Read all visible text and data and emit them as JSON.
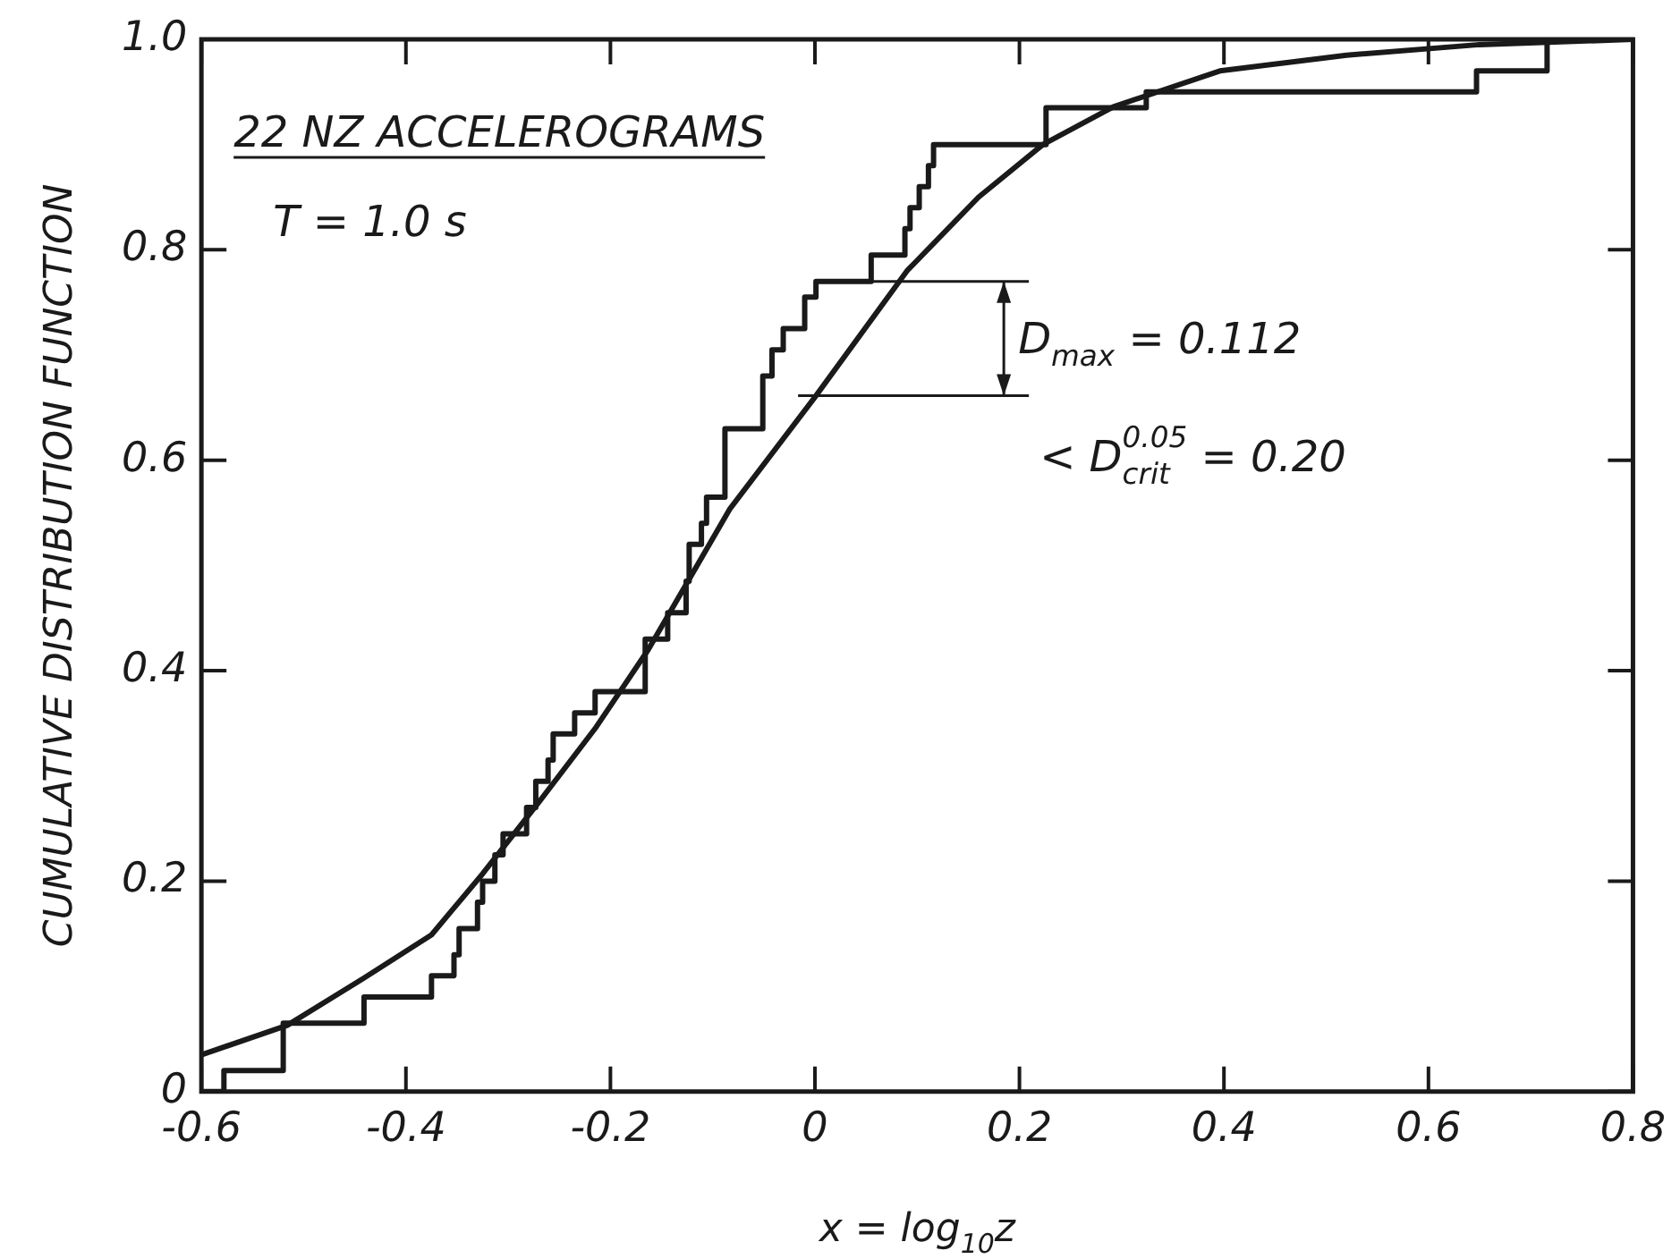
{
  "chart_data": {
    "type": "line",
    "xlabel": "x = log$_{10}$z",
    "ylabel": "CUMULATIVE DISTRIBUTION FUNCTION",
    "xlim": [
      -0.6,
      0.8
    ],
    "xticks": [
      -0.6,
      -0.4,
      -0.2,
      0,
      0.2,
      0.4,
      0.6,
      0.8
    ],
    "ylim": [
      0,
      1
    ],
    "yticks": [
      0,
      0.2,
      0.4,
      0.6,
      0.8,
      {
        "value": 1,
        "label": "1.0"
      }
    ],
    "grid": false,
    "legend": false,
    "marker": "none",
    "line_style": "solid",
    "series": [
      {
        "type": "step",
        "color": "#1a1a1a",
        "x": [
          -0.6,
          -0.578,
          -0.52,
          -0.441,
          -0.375,
          -0.353,
          -0.348,
          -0.33,
          -0.325,
          -0.313,
          -0.305,
          -0.282,
          -0.273,
          -0.261,
          -0.256,
          -0.235,
          -0.215,
          -0.166,
          -0.144,
          -0.126,
          -0.123,
          -0.111,
          -0.106,
          -0.088,
          -0.051,
          -0.042,
          -0.031,
          -0.01,
          0.001,
          0.055,
          0.088,
          0.093,
          0.102,
          0.111,
          0.116,
          0.226,
          0.324,
          0.647,
          0.716,
          0.8
        ],
        "values": [
          0,
          0.02,
          0.065,
          0.09,
          0.11,
          0.13,
          0.155,
          0.18,
          0.2,
          0.225,
          0.245,
          0.27,
          0.295,
          0.315,
          0.34,
          0.36,
          0.38,
          0.43,
          0.455,
          0.485,
          0.52,
          0.54,
          0.565,
          0.63,
          0.68,
          0.705,
          0.725,
          0.755,
          0.77,
          0.795,
          0.82,
          0.84,
          0.86,
          0.88,
          0.9,
          0.935,
          0.95,
          0.97,
          1,
          1
        ]
      },
      {
        "type": "line",
        "color": "#1a1a1a",
        "x": [
          -0.6,
          -0.516,
          -0.441,
          -0.375,
          -0.325,
          -0.27,
          -0.215,
          -0.163,
          -0.083,
          0,
          0.09,
          0.16,
          0.223,
          0.292,
          0.396,
          0.52,
          0.65,
          0.8
        ],
        "values": [
          0.035,
          0.063,
          0.108,
          0.149,
          0.207,
          0.275,
          0.345,
          0.42,
          0.554,
          0.66,
          0.78,
          0.85,
          0.9,
          0.936,
          0.97,
          0.985,
          0.995,
          1
        ]
      }
    ],
    "annotations": [
      "22 NZ ACCELEROGRAMS",
      "T = 1.0 s",
      {
        "text": "D$_{max}$ = 0.112",
        "x": 0.001,
        "y": 0.77
      },
      "< D$^{0.05}$$_{crit}$ = 0.20"
    ]
  }
}
